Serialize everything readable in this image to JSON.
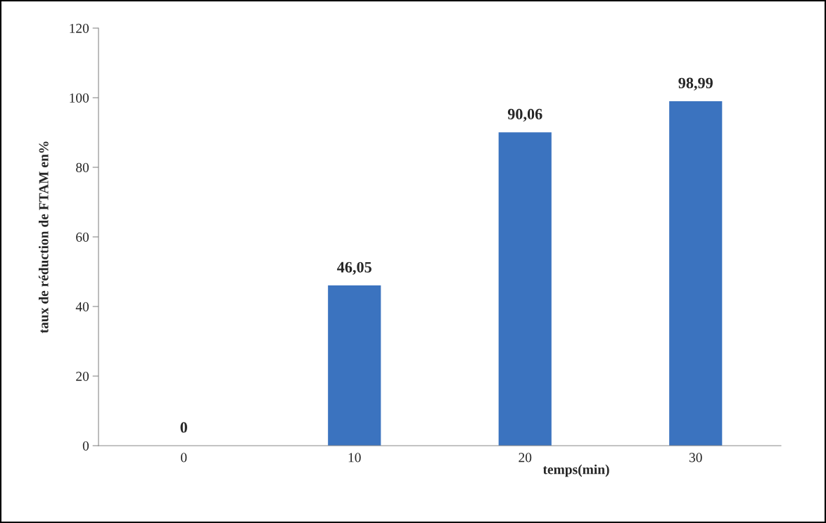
{
  "chart_data": {
    "type": "bar",
    "xlabel": "temps(min)",
    "ylabel": "taux de réduction de FTAM en%",
    "categories": [
      "0",
      "10",
      "20",
      "30"
    ],
    "values": [
      0,
      46.05,
      90.06,
      98.99
    ],
    "value_labels": [
      "0",
      "46,05",
      "90,06",
      "98,99"
    ],
    "color": "#3b73bf",
    "ylim": [
      0,
      120
    ],
    "yticks": [
      0,
      20,
      40,
      60,
      80,
      100,
      120
    ],
    "grid": false,
    "legend": false
  }
}
